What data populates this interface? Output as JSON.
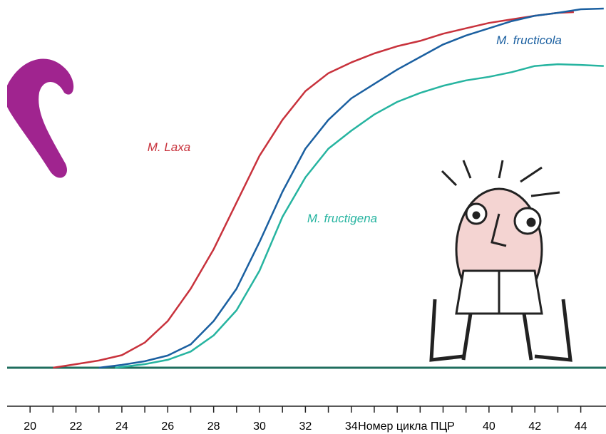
{
  "chart_data": {
    "type": "line",
    "xlabel": "Номер цикла ПЦР",
    "xlim": [
      19,
      45.1
    ],
    "ylim": [
      0,
      100
    ],
    "xticks": [
      20,
      22,
      24,
      26,
      28,
      30,
      32,
      34,
      40,
      42,
      44
    ],
    "minor_xticks": [
      21,
      23,
      25,
      27,
      29,
      31,
      33,
      35,
      36,
      37,
      38,
      39,
      41,
      43
    ],
    "series": [
      {
        "name": "M. Laxa",
        "color": "#c8323c",
        "x": [
          21,
          22,
          23,
          24,
          25,
          26,
          27,
          28,
          29,
          30,
          31,
          32,
          33,
          34,
          35,
          36,
          37,
          38,
          39,
          40,
          41,
          42,
          43,
          43.7
        ],
        "values": [
          0,
          1,
          2,
          3.5,
          7,
          13,
          22,
          33,
          46,
          59,
          69,
          77,
          82,
          85,
          87.5,
          89.5,
          91,
          93,
          94.5,
          96,
          97,
          98,
          98.8,
          99
        ]
      },
      {
        "name": "M. fructicola",
        "color": "#1a5fa0",
        "x": [
          23,
          24,
          25,
          26,
          27,
          28,
          29,
          30,
          31,
          32,
          33,
          34,
          35,
          36,
          37,
          38,
          39,
          40,
          41,
          42,
          43,
          44,
          45
        ],
        "values": [
          0,
          0.8,
          1.8,
          3.4,
          6.5,
          13,
          22,
          35,
          49,
          61,
          69,
          75,
          79,
          83,
          86.5,
          90,
          92.5,
          94.5,
          96.5,
          98,
          98.8,
          99.8,
          100
        ]
      },
      {
        "name": "M. fructigena",
        "color": "#26b4a0",
        "x": [
          23.7,
          25,
          26,
          27,
          28,
          29,
          30,
          31,
          32,
          33,
          34,
          35,
          36,
          37,
          38,
          39,
          40,
          41,
          42,
          43,
          44,
          45
        ],
        "values": [
          0,
          1,
          2.2,
          4.5,
          9,
          16,
          27,
          42,
          53,
          61,
          66,
          70.5,
          74,
          76.5,
          78.5,
          80,
          81,
          82.3,
          84,
          84.5,
          84.3,
          84
        ]
      }
    ]
  }
}
